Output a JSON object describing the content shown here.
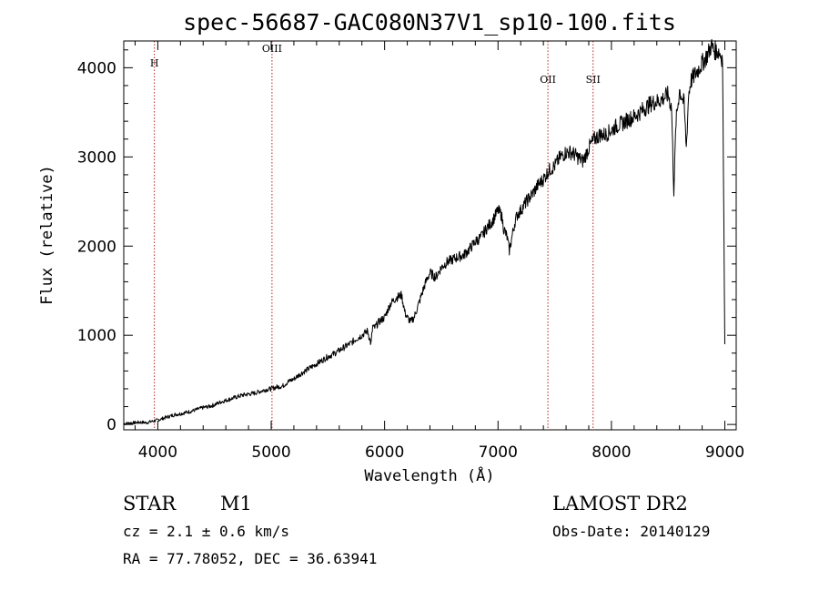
{
  "chart_data": {
    "type": "line",
    "title": "spec-56687-GAC080N37V1_sp10-100.fits",
    "xlabel": "Wavelength (Å)",
    "ylabel": "Flux (relative)",
    "xlim": [
      3700,
      9100
    ],
    "ylim": [
      -60,
      4300
    ],
    "grid": false,
    "x_ticks": [
      4000,
      5000,
      6000,
      7000,
      8000,
      9000
    ],
    "y_ticks": [
      0,
      1000,
      2000,
      3000,
      4000
    ],
    "series": [
      {
        "x": [
          3700,
          3750,
          3800,
          3850,
          3900,
          3950,
          4000,
          4050,
          4100,
          4150,
          4200,
          4250,
          4300,
          4350,
          4400,
          4450,
          4500,
          4550,
          4600,
          4650,
          4700,
          4750,
          4800,
          4850,
          4900,
          4950,
          5000,
          5050,
          5100,
          5150,
          5200,
          5250,
          5300,
          5350,
          5400,
          5450,
          5500,
          5550,
          5600,
          5650,
          5700,
          5750,
          5800,
          5850,
          5880,
          5895,
          5910,
          5950,
          6000,
          6050,
          6100,
          6150,
          6180,
          6200,
          6230,
          6260,
          6300,
          6350,
          6380,
          6400,
          6450,
          6500,
          6550,
          6600,
          6650,
          6700,
          6750,
          6800,
          6850,
          6900,
          6950,
          7000,
          7030,
          7050,
          7080,
          7100,
          7130,
          7150,
          7170,
          7200,
          7250,
          7300,
          7350,
          7400,
          7450,
          7500,
          7550,
          7600,
          7650,
          7700,
          7750,
          7800,
          7850,
          7900,
          7950,
          8000,
          8050,
          8100,
          8150,
          8200,
          8250,
          8300,
          8350,
          8400,
          8450,
          8500,
          8530,
          8540,
          8550,
          8570,
          8600,
          8640,
          8660,
          8680,
          8700,
          8750,
          8800,
          8850,
          8880,
          8900,
          8950,
          8980,
          9000
        ],
        "y": [
          10,
          15,
          20,
          25,
          20,
          35,
          50,
          70,
          90,
          110,
          120,
          135,
          150,
          170,
          190,
          200,
          220,
          250,
          270,
          290,
          310,
          330,
          340,
          350,
          370,
          390,
          400,
          420,
          430,
          480,
          510,
          560,
          600,
          640,
          680,
          720,
          760,
          790,
          830,
          870,
          910,
          960,
          1000,
          1050,
          900,
          1100,
          1080,
          1150,
          1200,
          1350,
          1420,
          1450,
          1250,
          1200,
          1150,
          1200,
          1350,
          1550,
          1650,
          1700,
          1650,
          1760,
          1820,
          1850,
          1880,
          1900,
          1970,
          2050,
          2100,
          2200,
          2280,
          2400,
          2350,
          2200,
          2100,
          1950,
          2150,
          2280,
          2350,
          2400,
          2500,
          2580,
          2680,
          2750,
          2850,
          2900,
          3000,
          3050,
          3050,
          3000,
          2950,
          3100,
          3200,
          3250,
          3250,
          3300,
          3350,
          3380,
          3420,
          3450,
          3500,
          3550,
          3600,
          3620,
          3650,
          3700,
          3550,
          3100,
          2620,
          3400,
          3750,
          3600,
          3100,
          3700,
          3850,
          3950,
          4050,
          4150,
          4250,
          4200,
          4180,
          4100,
          900
        ]
      }
    ],
    "emission_lines": [
      {
        "label": "H",
        "x": 3970
      },
      {
        "label": "OIII",
        "x": 5007
      },
      {
        "label": "OII",
        "x": 7440
      },
      {
        "label": "SII",
        "x": 7838
      }
    ]
  },
  "info": {
    "object_class": "STAR",
    "subclass": "M1",
    "survey": "LAMOST DR2",
    "cz": "cz = 2.1 ± 0.6 km/s",
    "obs_date": "Obs-Date: 20140129",
    "coords": "RA =  77.78052, DEC =  36.63941"
  },
  "colors": {
    "line_marker": "#b22222",
    "spectrum": "#000000"
  }
}
